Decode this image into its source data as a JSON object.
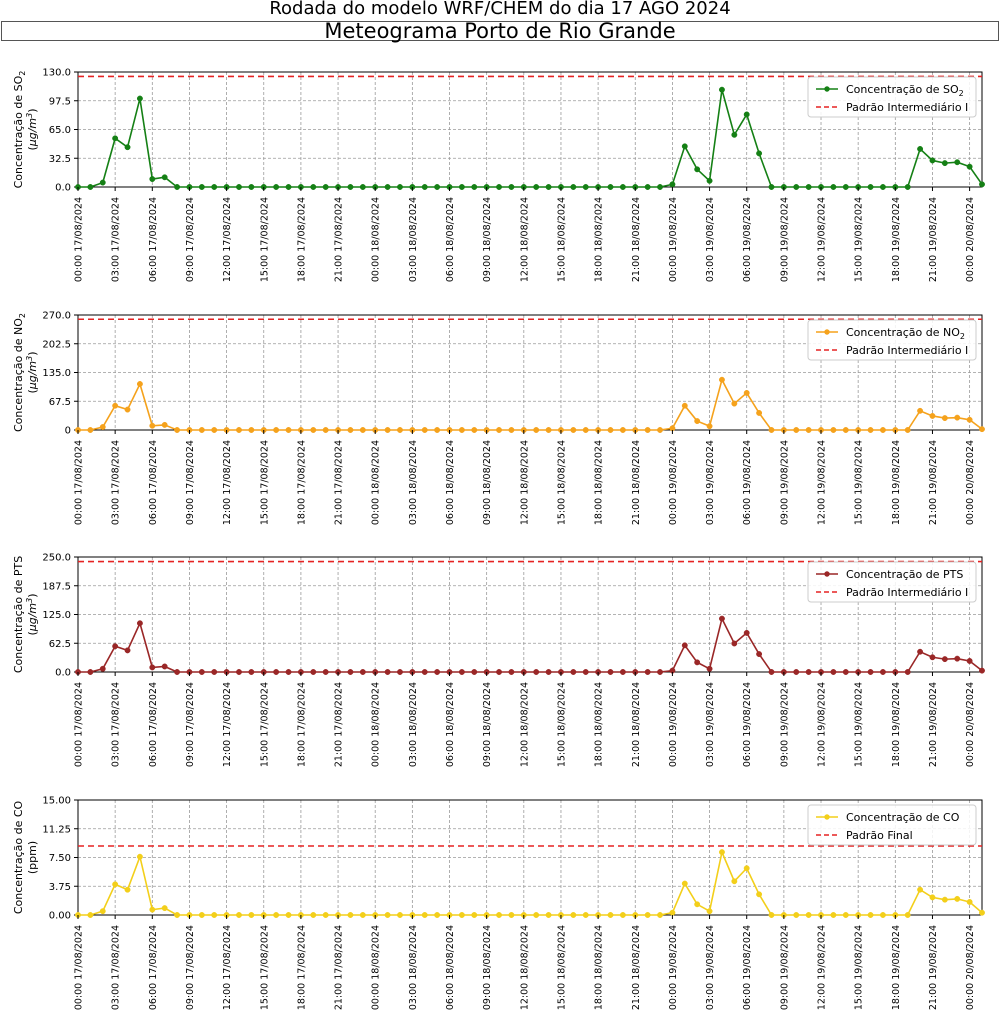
{
  "header": {
    "title": "Rodada do modelo WRF/CHEM do dia 17 AGO 2024",
    "subtitle": "Meteograma Porto de Rio Grande"
  },
  "x_labels": [
    "00:00 17/08/2024",
    "03:00 17/08/2024",
    "06:00 17/08/2024",
    "09:00 17/08/2024",
    "12:00 17/08/2024",
    "15:00 17/08/2024",
    "18:00 17/08/2024",
    "21:00 17/08/2024",
    "00:00 18/08/2024",
    "03:00 18/08/2024",
    "06:00 18/08/2024",
    "09:00 18/08/2024",
    "12:00 18/08/2024",
    "15:00 18/08/2024",
    "18:00 18/08/2024",
    "21:00 18/08/2024",
    "00:00 19/08/2024",
    "03:00 19/08/2024",
    "06:00 19/08/2024",
    "09:00 19/08/2024",
    "12:00 19/08/2024",
    "15:00 19/08/2024",
    "18:00 19/08/2024",
    "21:00 19/08/2024",
    "00:00 20/08/2024"
  ],
  "chart_data": [
    {
      "type": "line",
      "key": "so2",
      "ylabel_main": "Concentração de SO",
      "ylabel_sub": "2",
      "ylabel_unit": "μg/m",
      "ylabel_unit_sup": "3",
      "ylim": [
        0,
        130
      ],
      "yticks": [
        "0.0",
        "32.5",
        "65.0",
        "97.5",
        "130.0"
      ],
      "color": "#158015",
      "standard_color": "#e52222",
      "standard": 125,
      "legend_series": "Concentração de SO",
      "legend_series_sub": "2",
      "legend_standard": "Padrão Intermediário I",
      "values": [
        0,
        0,
        5,
        55,
        45,
        100,
        9,
        11,
        0,
        0,
        0,
        0,
        0,
        0,
        0,
        0,
        0,
        0,
        0,
        0,
        0,
        0,
        0,
        0,
        0,
        0,
        0,
        0,
        0,
        0,
        0,
        0,
        0,
        0,
        0,
        0,
        0,
        0,
        0,
        0,
        0,
        0,
        0,
        0,
        0,
        0,
        0,
        0,
        3,
        46,
        20,
        7,
        110,
        59,
        82,
        38,
        0,
        0,
        0,
        0,
        0,
        0,
        0,
        0,
        0,
        0,
        0,
        0,
        43,
        30,
        27,
        28,
        23,
        3
      ]
    },
    {
      "type": "line",
      "key": "no2",
      "ylabel_main": "Concentração de NO",
      "ylabel_sub": "2",
      "ylabel_unit": "μg/m",
      "ylabel_unit_sup": "3",
      "ylim": [
        0,
        270
      ],
      "yticks": [
        "0",
        "67.5",
        "135.0",
        "202.5",
        "270.0"
      ],
      "color": "#f5a21c",
      "standard_color": "#e52222",
      "standard": 260,
      "legend_series": "Concentração de NO",
      "legend_series_sub": "2",
      "legend_standard": "Padrão Intermediário I",
      "values": [
        0,
        0,
        7,
        57,
        48,
        108,
        10,
        12,
        0,
        0,
        0,
        0,
        0,
        0,
        0,
        0,
        0,
        0,
        0,
        0,
        0,
        0,
        0,
        0,
        0,
        0,
        0,
        0,
        0,
        0,
        0,
        0,
        0,
        0,
        0,
        0,
        0,
        0,
        0,
        0,
        0,
        0,
        0,
        0,
        0,
        0,
        0,
        0,
        4,
        57,
        21,
        9,
        118,
        62,
        87,
        40,
        0,
        0,
        0,
        0,
        0,
        0,
        0,
        0,
        0,
        0,
        0,
        0,
        45,
        33,
        28,
        29,
        24,
        2
      ]
    },
    {
      "type": "line",
      "key": "pts",
      "ylabel_main": "Concentração de PTS",
      "ylabel_sub": "",
      "ylabel_unit": "μg/m",
      "ylabel_unit_sup": "3",
      "ylim": [
        0,
        250
      ],
      "yticks": [
        "0.0",
        "62.5",
        "125.0",
        "187.5",
        "250.0"
      ],
      "color": "#9a2727",
      "standard_color": "#e52222",
      "standard": 240,
      "legend_series": "Concentração de PTS",
      "legend_series_sub": "",
      "legend_standard": "Padrão Intermediário I",
      "values": [
        0,
        0,
        7,
        56,
        47,
        106,
        10,
        12,
        0,
        0,
        0,
        0,
        0,
        0,
        0,
        0,
        0,
        0,
        0,
        0,
        0,
        0,
        0,
        0,
        0,
        0,
        0,
        0,
        0,
        0,
        0,
        0,
        0,
        0,
        0,
        0,
        0,
        0,
        0,
        0,
        0,
        0,
        0,
        0,
        0,
        0,
        0,
        0,
        3,
        58,
        21,
        7,
        116,
        62,
        85,
        39,
        0,
        0,
        0,
        0,
        0,
        0,
        0,
        0,
        0,
        0,
        0,
        0,
        44,
        32,
        28,
        29,
        24,
        3
      ]
    },
    {
      "type": "line",
      "key": "co",
      "ylabel_main": "Concentração de CO",
      "ylabel_sub": "",
      "ylabel_unit": "ppm",
      "ylabel_unit_sup": "",
      "ylim": [
        0,
        15
      ],
      "yticks": [
        "0.00",
        "3.75",
        "7.50",
        "11.25",
        "15.00"
      ],
      "color": "#f3cf1a",
      "standard_color": "#e52222",
      "standard": 9,
      "legend_series": "Concentração de CO",
      "legend_series_sub": "",
      "legend_standard": "Padrão Final",
      "values": [
        0,
        0,
        0.5,
        4.0,
        3.3,
        7.6,
        0.7,
        0.9,
        0,
        0,
        0,
        0,
        0,
        0,
        0,
        0,
        0,
        0,
        0,
        0,
        0,
        0,
        0,
        0,
        0,
        0,
        0,
        0,
        0,
        0,
        0,
        0,
        0,
        0,
        0,
        0,
        0,
        0,
        0,
        0,
        0,
        0,
        0,
        0,
        0,
        0,
        0,
        0,
        0.3,
        4.1,
        1.4,
        0.5,
        8.2,
        4.4,
        6.1,
        2.7,
        0,
        0,
        0,
        0,
        0,
        0,
        0,
        0,
        0,
        0,
        0,
        0,
        3.3,
        2.3,
        2.0,
        2.1,
        1.7,
        0.3
      ]
    }
  ]
}
